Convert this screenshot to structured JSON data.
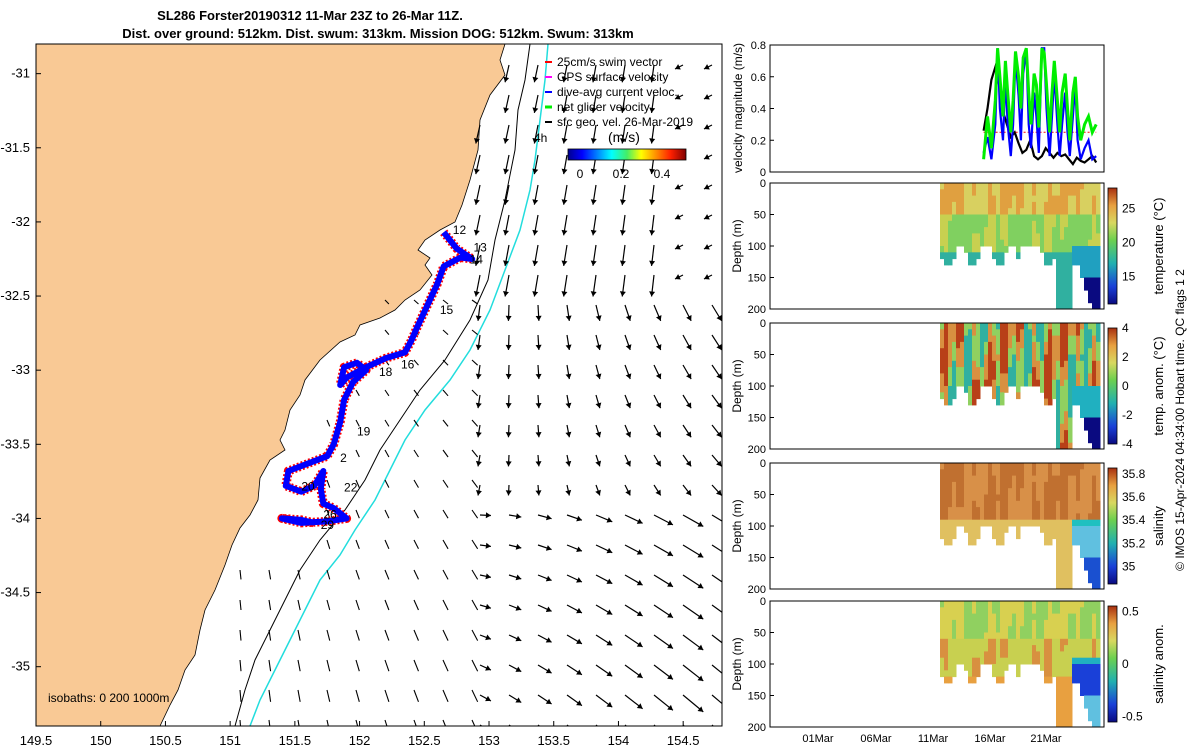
{
  "title_line1": "SL286 Forster20190312 11-Mar 23Z to 26-Mar 11Z.",
  "title_line2": "Dist. over ground: 512km. Dist. swum: 313km. Mission DOG: 512km. Swum: 313km",
  "footer": "© IMOS 15-Apr-2024 04:34:00 Hobart time. QC flags 1  2",
  "colors": {
    "land": "#f9c995",
    "track_red": "#ff0000",
    "track_blue": "#0000ff",
    "net_green": "#00ee00",
    "isobath_cyan": "#22dddd"
  },
  "chart_data": [
    {
      "type": "map",
      "xlim": [
        149.5,
        154.8
      ],
      "ylim": [
        -35.4,
        -30.8
      ],
      "xticks": [
        "149.5",
        "150",
        "150.5",
        "151",
        "151.5",
        "152",
        "152.5",
        "153",
        "153.5",
        "154",
        "154.5"
      ],
      "yticks": [
        "-31",
        "-31.5",
        "-32",
        "-32.5",
        "-33",
        "-33.5",
        "-34",
        "-34.5",
        "-35"
      ],
      "legend": [
        {
          "label": "25cm/s swim vector",
          "color": "#ff0000"
        },
        {
          "label": "GPS surface velocity",
          "color": "#ff00ff"
        },
        {
          "label": "dive-avg current veloc.",
          "color": "#0000ff"
        },
        {
          "label": "net glider velocity",
          "color": "#00ee00"
        },
        {
          "label": "sfc geo. vel. 26-Mar-2019",
          "color": "#000000"
        }
      ],
      "scale_label": "4h",
      "colorbar": {
        "label": "(m/s)",
        "ticks": [
          "0",
          "0.2",
          "0.4"
        ],
        "range": [
          0,
          0.5
        ]
      },
      "isobaths_label": "isobaths: 0   200  1000m",
      "day_labels": [
        {
          "day": "12",
          "lon": 152.72,
          "lat": -32.08
        },
        {
          "day": "13",
          "lon": 152.88,
          "lat": -32.2
        },
        {
          "day": "14",
          "lon": 152.85,
          "lat": -32.28
        },
        {
          "day": "15",
          "lon": 152.62,
          "lat": -32.62
        },
        {
          "day": "16",
          "lon": 152.32,
          "lat": -32.99
        },
        {
          "day": "18",
          "lon": 152.15,
          "lat": -33.04
        },
        {
          "day": "19",
          "lon": 151.98,
          "lat": -33.44
        },
        {
          "day": "2",
          "lon": 151.85,
          "lat": -33.62
        },
        {
          "day": "20",
          "lon": 151.55,
          "lat": -33.81
        },
        {
          "day": "22",
          "lon": 151.88,
          "lat": -33.82
        },
        {
          "day": "26",
          "lon": 151.72,
          "lat": -34.0
        },
        {
          "day": "29",
          "lon": 151.7,
          "lat": -34.07
        }
      ],
      "track": [
        [
          152.65,
          -32.07
        ],
        [
          152.75,
          -32.18
        ],
        [
          152.87,
          -32.25
        ],
        [
          152.78,
          -32.24
        ],
        [
          152.65,
          -32.3
        ],
        [
          152.6,
          -32.42
        ],
        [
          152.52,
          -32.57
        ],
        [
          152.44,
          -32.72
        ],
        [
          152.4,
          -32.8
        ],
        [
          152.35,
          -32.88
        ],
        [
          152.2,
          -32.92
        ],
        [
          152.05,
          -32.98
        ],
        [
          151.9,
          -33.05
        ],
        [
          151.85,
          -33.1
        ],
        [
          151.88,
          -32.98
        ],
        [
          151.98,
          -32.95
        ],
        [
          152.05,
          -33.0
        ],
        [
          151.95,
          -33.08
        ],
        [
          151.88,
          -33.2
        ],
        [
          151.85,
          -33.35
        ],
        [
          151.8,
          -33.5
        ],
        [
          151.75,
          -33.58
        ],
        [
          151.6,
          -33.63
        ],
        [
          151.45,
          -33.68
        ],
        [
          151.43,
          -33.78
        ],
        [
          151.55,
          -33.82
        ],
        [
          151.65,
          -33.78
        ],
        [
          151.72,
          -33.68
        ],
        [
          151.7,
          -33.8
        ],
        [
          151.72,
          -33.9
        ],
        [
          151.8,
          -33.93
        ],
        [
          151.9,
          -34.0
        ],
        [
          151.75,
          -34.02
        ],
        [
          151.55,
          -34.03
        ],
        [
          151.4,
          -34.0
        ],
        [
          151.55,
          -34.01
        ],
        [
          151.65,
          -34.03
        ]
      ]
    },
    {
      "type": "line",
      "ylabel": "velocity magnitude (m/s)",
      "ylim": [
        0,
        0.8
      ],
      "yticks": [
        "0",
        "0.2",
        "0.4",
        "0.6",
        "0.8"
      ],
      "series": [
        {
          "color": "#000000",
          "x": [
            11.5,
            12.0,
            12.5,
            13.0,
            13.5,
            14.0,
            14.5,
            15.0,
            15.5,
            16.0,
            16.5,
            17.0,
            17.5,
            18.0,
            18.5,
            19.0,
            19.5,
            20.0,
            20.5,
            21.0,
            21.5,
            22.0,
            22.5,
            23.0,
            23.5,
            24.0,
            24.5,
            25.0,
            25.5,
            26.0
          ],
          "values": [
            0.26,
            0.4,
            0.58,
            0.66,
            0.55,
            0.38,
            0.3,
            0.22,
            0.25,
            0.18,
            0.12,
            0.14,
            0.2,
            0.1,
            0.08,
            0.1,
            0.15,
            0.12,
            0.09,
            0.12,
            0.1,
            0.11,
            0.08,
            0.05,
            0.09,
            0.07,
            0.06,
            0.08,
            0.1,
            0.06
          ]
        },
        {
          "color": "#ff0000",
          "x": [
            11.5,
            13.0,
            14.0,
            15.0,
            16.0,
            17.0,
            18.0,
            19.0,
            20.0,
            21.0,
            22.0,
            23.0,
            24.0,
            25.0,
            26.0
          ],
          "values": [
            0.25,
            0.25,
            0.25,
            0.25,
            0.25,
            0.25,
            0.25,
            0.25,
            0.25,
            0.25,
            0.25,
            0.25,
            0.25,
            0.25,
            0.25
          ]
        },
        {
          "color": "#0000ff",
          "x": [
            11.5,
            12.0,
            12.5,
            13.0,
            13.3,
            13.6,
            14.0,
            14.3,
            14.6,
            15.0,
            15.3,
            15.6,
            16.0,
            16.3,
            16.6,
            17.0,
            17.3,
            17.6,
            18.0,
            18.3,
            18.6,
            19.0,
            19.3,
            19.6,
            20.0,
            20.3,
            20.6,
            21.0,
            21.3,
            21.6,
            22.0,
            22.3,
            22.6,
            23.0,
            23.3,
            23.6,
            24.0,
            24.5,
            25.0,
            25.5,
            26.0
          ],
          "values": [
            0.12,
            0.22,
            0.08,
            0.3,
            0.78,
            0.4,
            0.2,
            0.6,
            0.3,
            0.1,
            0.3,
            0.72,
            0.48,
            0.2,
            0.62,
            0.78,
            0.3,
            0.15,
            0.5,
            0.35,
            0.12,
            0.78,
            0.78,
            0.4,
            0.1,
            0.35,
            0.62,
            0.3,
            0.1,
            0.3,
            0.5,
            0.25,
            0.1,
            0.35,
            0.55,
            0.2,
            0.08,
            0.15,
            0.2,
            0.08,
            0.1
          ]
        },
        {
          "color": "#00ee00",
          "x": [
            11.5,
            12.0,
            12.5,
            13.0,
            13.3,
            13.6,
            14.0,
            14.3,
            14.6,
            15.0,
            15.3,
            15.6,
            16.0,
            16.3,
            16.6,
            17.0,
            17.3,
            17.6,
            18.0,
            18.3,
            18.6,
            19.0,
            19.3,
            19.6,
            20.0,
            20.3,
            20.6,
            21.0,
            21.3,
            21.6,
            22.0,
            22.3,
            22.6,
            23.0,
            23.3,
            23.6,
            24.0,
            24.5,
            25.0,
            25.5,
            26.0
          ],
          "values": [
            0.08,
            0.35,
            0.15,
            0.45,
            0.78,
            0.6,
            0.35,
            0.7,
            0.5,
            0.25,
            0.45,
            0.76,
            0.6,
            0.4,
            0.72,
            0.78,
            0.5,
            0.3,
            0.62,
            0.55,
            0.28,
            0.78,
            0.75,
            0.55,
            0.25,
            0.5,
            0.7,
            0.45,
            0.25,
            0.5,
            0.62,
            0.4,
            0.2,
            0.5,
            0.6,
            0.35,
            0.2,
            0.3,
            0.35,
            0.25,
            0.3
          ]
        }
      ]
    },
    {
      "type": "heatmap",
      "ylabel": "Depth (m)",
      "yticks": [
        "0",
        "50",
        "100",
        "150",
        "200"
      ],
      "colorbar_label": "temperature (°C)",
      "colorbar_ticks": [
        "15",
        "20",
        "25"
      ],
      "crange": [
        11,
        28
      ],
      "style": "temp"
    },
    {
      "type": "heatmap",
      "ylabel": "Depth (m)",
      "yticks": [
        "0",
        "50",
        "100",
        "150",
        "200"
      ],
      "colorbar_label": "temp. anom. (°C)",
      "colorbar_ticks": [
        "-4",
        "-2",
        "0",
        "2",
        "4"
      ],
      "crange": [
        -4,
        4
      ],
      "style": "tanom"
    },
    {
      "type": "heatmap",
      "ylabel": "Depth (m)",
      "yticks": [
        "0",
        "50",
        "100",
        "150",
        "200"
      ],
      "colorbar_label": "salinity",
      "colorbar_ticks": [
        "35",
        "35.2",
        "35.4",
        "35.6",
        "35.8"
      ],
      "crange": [
        34.85,
        35.85
      ],
      "style": "sal"
    },
    {
      "type": "heatmap",
      "ylabel": "Depth (m)",
      "yticks": [
        "0",
        "50",
        "100",
        "150",
        "200"
      ],
      "colorbar_label": "salinity anom.",
      "colorbar_ticks": [
        "-0.5",
        "0",
        "0.5"
      ],
      "crange": [
        -0.55,
        0.55
      ],
      "style": "sanom",
      "xticks": [
        "01Mar",
        "06Mar",
        "11Mar",
        "16Mar",
        "21Mar"
      ]
    }
  ]
}
